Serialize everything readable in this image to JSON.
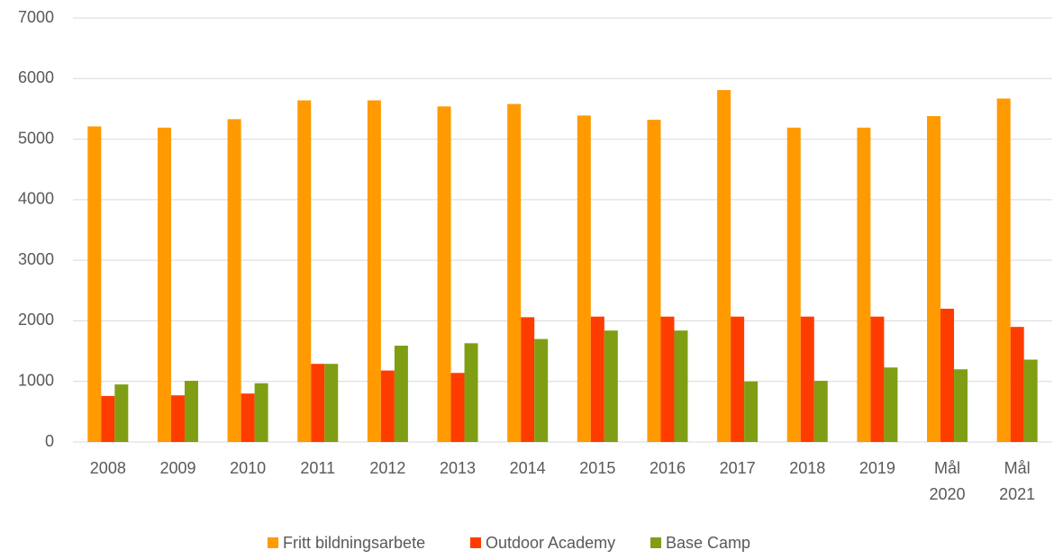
{
  "chart_data": {
    "type": "bar",
    "categories": [
      "2008",
      "2009",
      "2010",
      "2011",
      "2012",
      "2013",
      "2014",
      "2015",
      "2016",
      "2017",
      "2018",
      "2019",
      "Mål 2020",
      "Mål 2021"
    ],
    "series": [
      {
        "name": "Fritt bildningsarbete",
        "color": "#ff9a00",
        "values": [
          5210,
          5190,
          5330,
          5640,
          5640,
          5540,
          5580,
          5390,
          5320,
          5810,
          5190,
          5190,
          5380,
          5670
        ]
      },
      {
        "name": "Outdoor Academy",
        "color": "#ff3c00",
        "values": [
          760,
          770,
          800,
          1290,
          1180,
          1140,
          2060,
          2070,
          2070,
          2070,
          2070,
          2070,
          2200,
          1900
        ]
      },
      {
        "name": "Base Camp",
        "color": "#809e14",
        "values": [
          950,
          1010,
          970,
          1290,
          1590,
          1630,
          1700,
          1840,
          1840,
          1000,
          1010,
          1230,
          1200,
          1360
        ]
      }
    ],
    "ylim": [
      0,
      7000
    ],
    "yticks": [
      0,
      1000,
      2000,
      3000,
      4000,
      5000,
      6000,
      7000
    ],
    "grid": true,
    "legend": "bottom"
  }
}
